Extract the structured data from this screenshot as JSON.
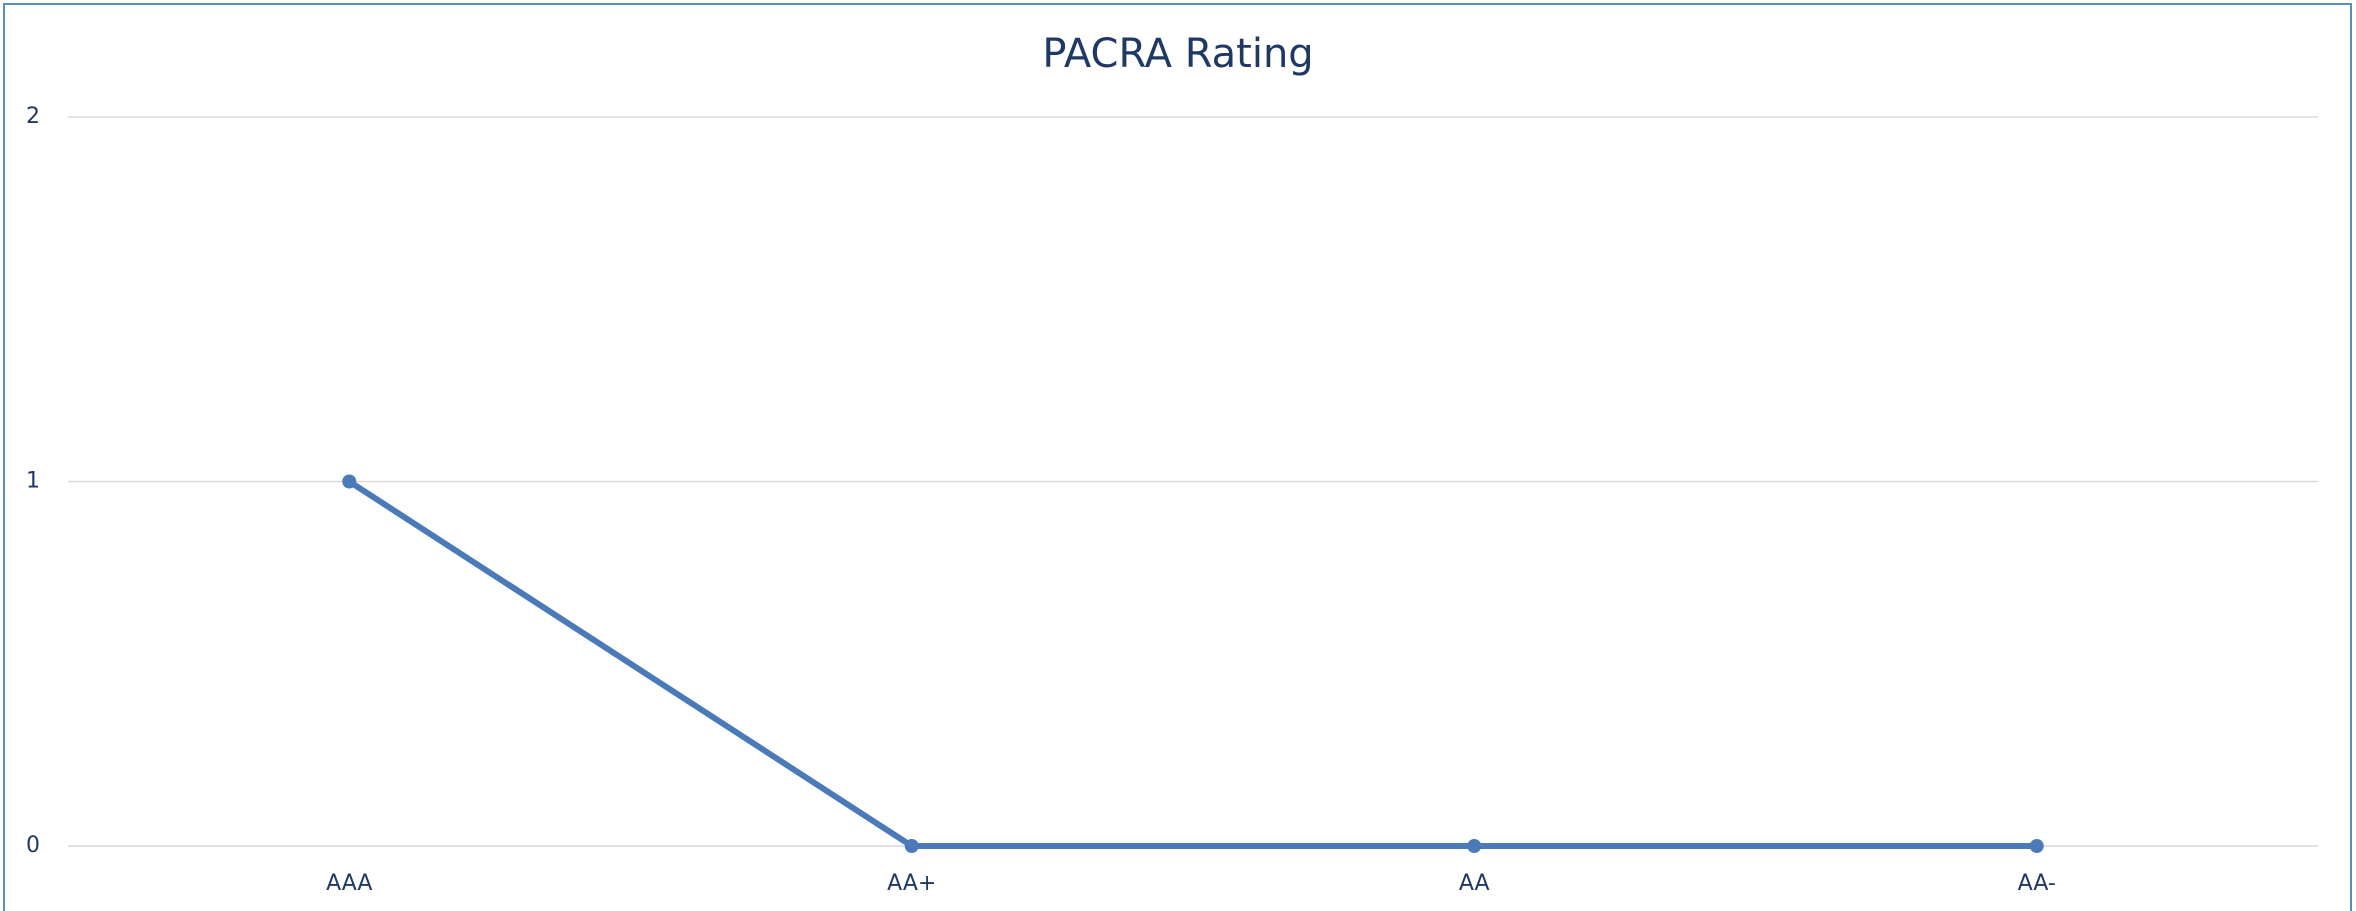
{
  "chart_data": {
    "type": "line",
    "title": "PACRA Rating",
    "categories": [
      "AAA",
      "AA+",
      "AA",
      "AA-"
    ],
    "values": [
      1,
      0,
      0,
      0
    ],
    "color": "#4a7ab8",
    "ylim": [
      0,
      2
    ],
    "yticks": [
      0,
      1,
      2
    ],
    "grid": true
  }
}
